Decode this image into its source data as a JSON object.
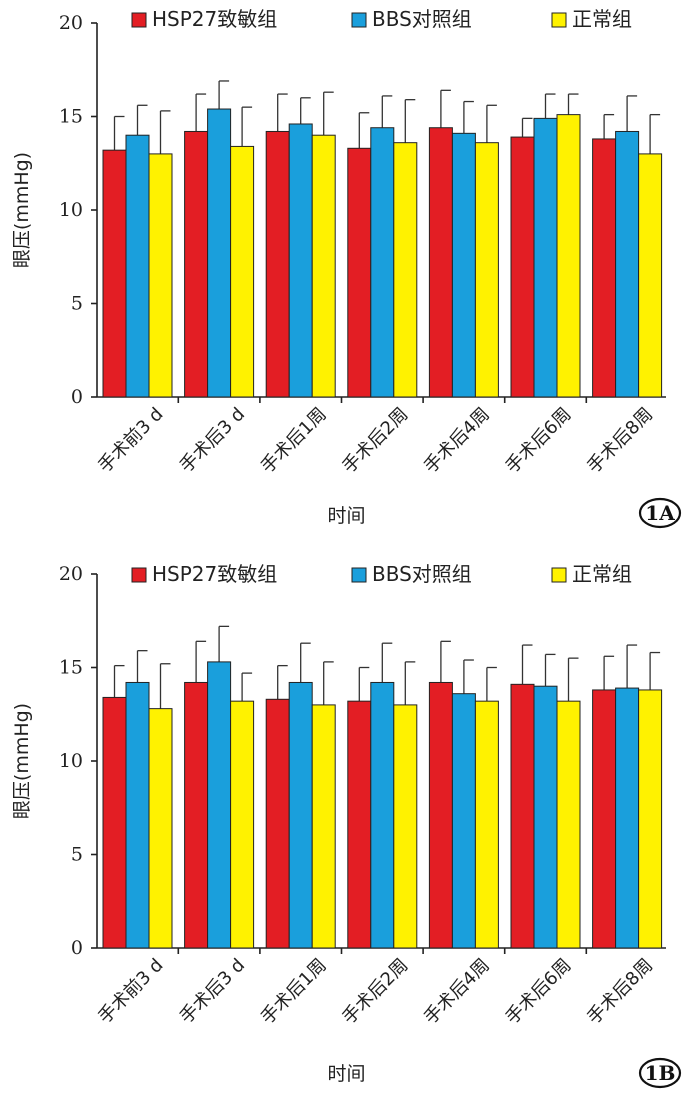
{
  "chart_data": [
    {
      "type": "bar",
      "panel_label": "1A",
      "xlabel": "时间",
      "ylabel": "眼压(mmHg)",
      "ylim": [
        0,
        20
      ],
      "yticks": [
        0,
        5,
        10,
        15,
        20
      ],
      "categories": [
        "手术前3 d",
        "手术后3 d",
        "手术后1周",
        "手术后2周",
        "手术后4周",
        "手术后6周",
        "手术后8周"
      ],
      "legend_position": "top",
      "series": [
        {
          "name": "HSP27致敏组",
          "color": "#e31e24",
          "values": [
            13.2,
            14.2,
            14.2,
            13.3,
            14.4,
            13.9,
            13.8
          ],
          "errors": [
            1.8,
            2.0,
            2.0,
            1.9,
            2.0,
            1.0,
            1.3
          ]
        },
        {
          "name": "BBS对照组",
          "color": "#1a9fdc",
          "values": [
            14.0,
            15.4,
            14.6,
            14.4,
            14.1,
            14.9,
            14.2
          ],
          "errors": [
            1.6,
            1.5,
            1.4,
            1.7,
            1.7,
            1.3,
            1.9
          ]
        },
        {
          "name": "正常组",
          "color": "#fff200",
          "values": [
            13.0,
            13.4,
            14.0,
            13.6,
            13.6,
            15.1,
            13.0
          ],
          "errors": [
            2.3,
            2.1,
            2.3,
            2.3,
            2.0,
            1.1,
            2.1
          ]
        }
      ]
    },
    {
      "type": "bar",
      "panel_label": "1B",
      "xlabel": "时间",
      "ylabel": "眼压(mmHg)",
      "ylim": [
        0,
        20
      ],
      "yticks": [
        0,
        5,
        10,
        15,
        20
      ],
      "categories": [
        "手术前3 d",
        "手术后3 d",
        "手术后1周",
        "手术后2周",
        "手术后4周",
        "手术后6周",
        "手术后8周"
      ],
      "legend_position": "top",
      "series": [
        {
          "name": "HSP27致敏组",
          "color": "#e31e24",
          "values": [
            13.4,
            14.2,
            13.3,
            13.2,
            14.2,
            14.1,
            13.8
          ],
          "errors": [
            1.7,
            2.2,
            1.8,
            1.8,
            2.2,
            2.1,
            1.8
          ]
        },
        {
          "name": "BBS对照组",
          "color": "#1a9fdc",
          "values": [
            14.2,
            15.3,
            14.2,
            14.2,
            13.6,
            14.0,
            13.9
          ],
          "errors": [
            1.7,
            1.9,
            2.1,
            2.1,
            1.8,
            1.7,
            2.3
          ]
        },
        {
          "name": "正常组",
          "color": "#fff200",
          "values": [
            12.8,
            13.2,
            13.0,
            13.0,
            13.2,
            13.2,
            13.8
          ],
          "errors": [
            2.4,
            1.5,
            2.3,
            2.3,
            1.8,
            2.3,
            2.0
          ]
        }
      ]
    }
  ]
}
